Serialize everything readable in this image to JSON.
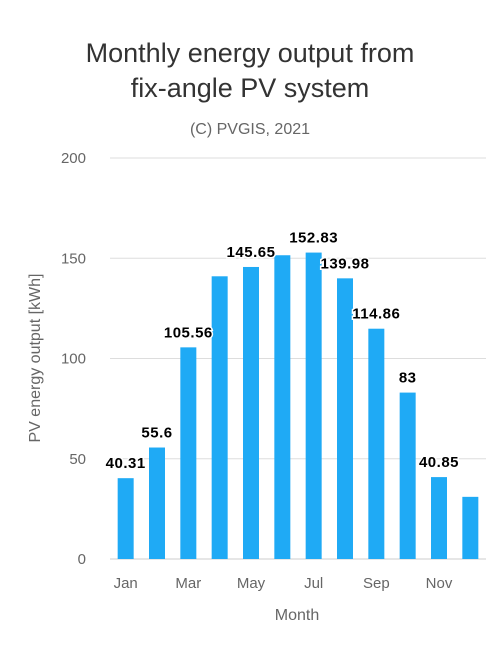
{
  "chart_data": {
    "type": "bar",
    "title_lines": [
      "Monthly energy output from",
      "fix-angle PV system"
    ],
    "subtitle": "(C) PVGIS, 2021",
    "xlabel": "Month",
    "ylabel": "PV energy output [kWh]",
    "ylim": [
      0,
      200
    ],
    "yticks": [
      0,
      50,
      100,
      150,
      200
    ],
    "grid": true,
    "categories": [
      "Jan",
      "Feb",
      "Mar",
      "Apr",
      "May",
      "Jun",
      "Jul",
      "Aug",
      "Sep",
      "Oct",
      "Nov",
      "Dec"
    ],
    "xtick_labels": [
      "Jan",
      "",
      "Mar",
      "",
      "May",
      "",
      "Jul",
      "",
      "Sep",
      "",
      "Nov",
      ""
    ],
    "values": [
      40.31,
      55.6,
      105.56,
      141,
      145.65,
      151.5,
      152.83,
      139.98,
      114.86,
      83,
      40.85,
      31
    ],
    "data_labels": [
      "40.31",
      "55.6",
      "105.56",
      "",
      "145.65",
      "",
      "152.83",
      "139.98",
      "114.86",
      "83",
      "40.85",
      ""
    ],
    "bar_color": "#1faaf5",
    "label_color": "#000000",
    "grid_color": "#dddddd",
    "axis_text_color": "#666666",
    "title_color": "#333333"
  }
}
